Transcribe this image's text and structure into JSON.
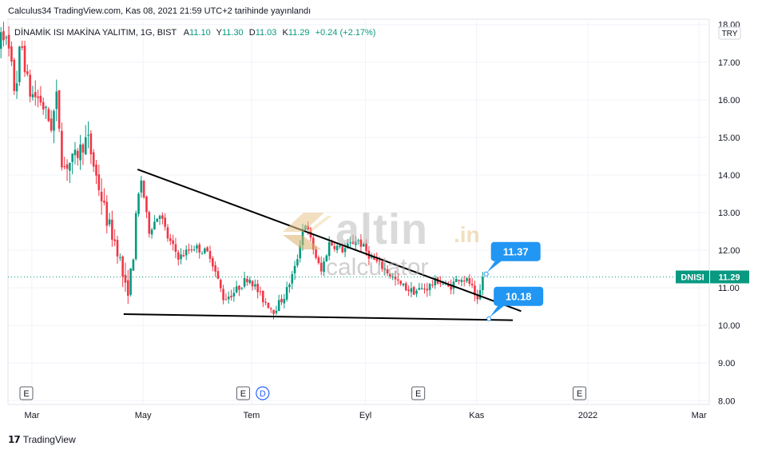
{
  "header": {
    "publish_text": "Calculus34 TradingView.com, Kas 08, 2021 21:59 UTC+2 tarihinde yayınlandı"
  },
  "legend": {
    "symbol": "DİNAMİK ISI MAKİNA YALITIM, 1G, BIST",
    "open_label": "A",
    "open": "11.10",
    "high_label": "Y",
    "high": "11.30",
    "low_label": "D",
    "low": "11.03",
    "close_label": "K",
    "close": "11.29",
    "change": "+0.24 (+2.17%)"
  },
  "currency_badge": "TRY",
  "price_tag": {
    "ticker": "DNISI",
    "price": "11.29"
  },
  "callouts": [
    {
      "text": "11.37",
      "value": 11.37
    },
    {
      "text": "10.18",
      "value": 10.18
    }
  ],
  "events": [
    {
      "label": "E",
      "month_offset": 0.0
    },
    {
      "label": "E",
      "month_offset": 3.9
    },
    {
      "label": "D",
      "month_offset": 4.25
    },
    {
      "label": "E",
      "month_offset": 7.05
    },
    {
      "label": "E",
      "month_offset": 9.95
    }
  ],
  "watermark": {
    "brand": "altin",
    "suffix": ".in",
    "sub": "calculator"
  },
  "footer": {
    "brand": "TradingView"
  },
  "colors": {
    "up": "#089981",
    "down": "#f23645",
    "trend": "#000000",
    "callout": "#2196f3",
    "tag": "#089981"
  },
  "chart_data": {
    "type": "candlestick",
    "title": "DİNAMİK ISI MAKİNA YALITIM, 1G, BIST",
    "y_ticks": [
      "8.00",
      "9.00",
      "10.00",
      "11.00",
      "12.00",
      "13.00",
      "14.00",
      "15.00",
      "16.00",
      "17.00",
      "18.00"
    ],
    "ylim": [
      7.9,
      18.1
    ],
    "x_ticks": [
      {
        "label": "Mar",
        "month": 0.1
      },
      {
        "label": "May",
        "month": 2.1
      },
      {
        "label": "Tem",
        "month": 4.05
      },
      {
        "label": "Eyl",
        "month": 6.1
      },
      {
        "label": "Kas",
        "month": 8.1
      },
      {
        "label": "2022",
        "month": 10.1
      },
      {
        "label": "Mar",
        "month": 12.1
      }
    ],
    "x_note": "month index 0 = start of March 2021",
    "price_anchors": [
      [
        -0.6,
        15.2
      ],
      [
        -0.5,
        17.4
      ],
      [
        -0.45,
        18.0
      ],
      [
        -0.3,
        17.2
      ],
      [
        -0.2,
        16.1
      ],
      [
        -0.1,
        17.6
      ],
      [
        0.05,
        16.2
      ],
      [
        0.25,
        16.0
      ],
      [
        0.45,
        15.3
      ],
      [
        0.55,
        16.1
      ],
      [
        0.65,
        14.2
      ],
      [
        0.85,
        14.4
      ],
      [
        1.1,
        15.0
      ],
      [
        1.25,
        14.0
      ],
      [
        1.45,
        12.8
      ],
      [
        1.65,
        12.0
      ],
      [
        1.8,
        10.8
      ],
      [
        1.9,
        11.5
      ],
      [
        2.0,
        13.3
      ],
      [
        2.07,
        13.9
      ],
      [
        2.2,
        12.5
      ],
      [
        2.4,
        13.0
      ],
      [
        2.55,
        12.3
      ],
      [
        2.75,
        11.8
      ],
      [
        3.0,
        12.1
      ],
      [
        3.3,
        11.9
      ],
      [
        3.55,
        10.7
      ],
      [
        3.75,
        10.9
      ],
      [
        4.0,
        11.3
      ],
      [
        4.25,
        10.7
      ],
      [
        4.45,
        10.4
      ],
      [
        4.65,
        10.8
      ],
      [
        4.85,
        11.6
      ],
      [
        5.0,
        12.8
      ],
      [
        5.15,
        12.1
      ],
      [
        5.3,
        11.4
      ],
      [
        5.45,
        12.2
      ],
      [
        5.7,
        12.0
      ],
      [
        5.95,
        12.3
      ],
      [
        6.2,
        11.8
      ],
      [
        6.45,
        11.5
      ],
      [
        6.7,
        11.1
      ],
      [
        6.95,
        10.9
      ],
      [
        7.2,
        11.0
      ],
      [
        7.4,
        11.2
      ],
      [
        7.6,
        11.0
      ],
      [
        7.8,
        11.3
      ],
      [
        8.0,
        11.1
      ],
      [
        8.1,
        10.5
      ],
      [
        8.22,
        11.29
      ]
    ],
    "events_axis": "month index",
    "trendlines": [
      {
        "name": "resistance",
        "from": [
          2.0,
          14.15
        ],
        "to": [
          8.9,
          10.38
        ]
      },
      {
        "name": "support",
        "from": [
          1.75,
          10.3
        ],
        "to": [
          8.75,
          10.14
        ]
      }
    ],
    "last_price": 11.29,
    "grid": true,
    "y_axis_side": "right"
  }
}
